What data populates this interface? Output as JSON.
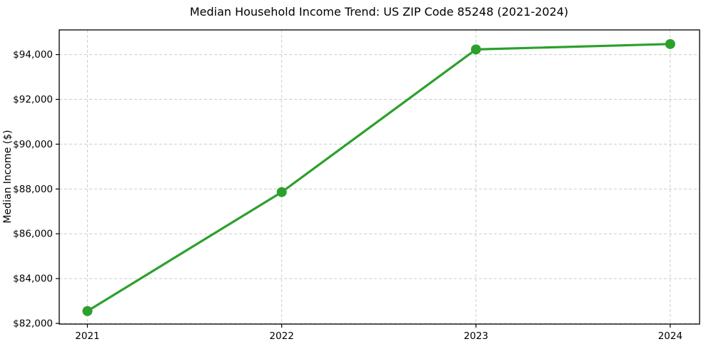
{
  "figure": {
    "background": "#ffffff",
    "spine_color": "#000000",
    "grid_color": "#cccccc",
    "tick_color": "#000000",
    "text_color": "#000000"
  },
  "chart_data": {
    "type": "line",
    "title": "Median Household Income Trend: US ZIP Code 85248 (2021-2024)",
    "xlabel": "",
    "ylabel": "Median Income ($)",
    "x": [
      2021,
      2022,
      2023,
      2024
    ],
    "values": [
      82550,
      87860,
      94230,
      94470
    ],
    "series": [
      {
        "name": "Median Household Income",
        "values": [
          82550,
          87860,
          94230,
          94470
        ]
      }
    ],
    "line_color": "#2ca02c",
    "marker": "circle",
    "marker_radius": 7,
    "xlim": [
      2020.855,
      2024.151
    ],
    "ylim": [
      81970,
      95100
    ],
    "xticks": [
      2021,
      2022,
      2023,
      2024
    ],
    "xtick_labels": [
      "2021",
      "2022",
      "2023",
      "2024"
    ],
    "yticks": [
      82000,
      84000,
      86000,
      88000,
      90000,
      92000,
      94000
    ],
    "ytick_labels": [
      "$82,000",
      "$84,000",
      "$86,000",
      "$88,000",
      "$90,000",
      "$92,000",
      "$94,000"
    ],
    "grid": true,
    "grid_style": "dashed",
    "legend": null
  }
}
